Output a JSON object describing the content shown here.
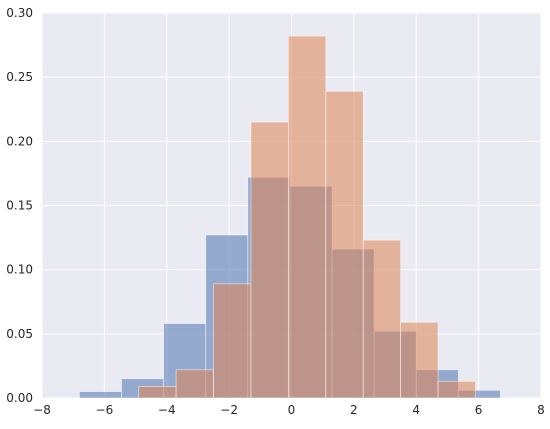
{
  "chart_data": {
    "type": "bar",
    "title": "",
    "xlabel": "",
    "ylabel": "",
    "xlim": [
      -8,
      8
    ],
    "ylim": [
      0,
      0.3
    ],
    "xticks": [
      -8,
      -6,
      -4,
      -2,
      0,
      2,
      4,
      6,
      8
    ],
    "xtick_labels": [
      "−8",
      "−6",
      "−4",
      "−2",
      "0",
      "2",
      "4",
      "6",
      "8"
    ],
    "yticks": [
      0.0,
      0.05,
      0.1,
      0.15,
      0.2,
      0.25,
      0.3
    ],
    "ytick_labels": [
      "0.00",
      "0.05",
      "0.10",
      "0.15",
      "0.20",
      "0.25",
      "0.30"
    ],
    "grid": true,
    "legend": "none",
    "series": [
      {
        "color": "#4c72b0",
        "opacity": 0.55,
        "bins": [
          {
            "x0": -6.8,
            "x1": -5.45,
            "value": 0.005
          },
          {
            "x0": -5.45,
            "x1": -4.1,
            "value": 0.015
          },
          {
            "x0": -4.1,
            "x1": -2.75,
            "value": 0.058
          },
          {
            "x0": -2.75,
            "x1": -1.4,
            "value": 0.127
          },
          {
            "x0": -1.4,
            "x1": -0.05,
            "value": 0.172
          },
          {
            "x0": -0.05,
            "x1": 1.3,
            "value": 0.165
          },
          {
            "x0": 1.3,
            "x1": 2.65,
            "value": 0.116
          },
          {
            "x0": 2.65,
            "x1": 4.0,
            "value": 0.052
          },
          {
            "x0": 4.0,
            "x1": 5.35,
            "value": 0.022
          },
          {
            "x0": 5.35,
            "x1": 6.7,
            "value": 0.006
          }
        ]
      },
      {
        "color": "#dd8452",
        "opacity": 0.55,
        "bins": [
          {
            "x0": -4.9,
            "x1": -3.7,
            "value": 0.009
          },
          {
            "x0": -3.7,
            "x1": -2.5,
            "value": 0.022
          },
          {
            "x0": -2.5,
            "x1": -1.3,
            "value": 0.089
          },
          {
            "x0": -1.3,
            "x1": -0.1,
            "value": 0.215
          },
          {
            "x0": -0.1,
            "x1": 1.1,
            "value": 0.282
          },
          {
            "x0": 1.1,
            "x1": 2.3,
            "value": 0.239
          },
          {
            "x0": 2.3,
            "x1": 3.5,
            "value": 0.123
          },
          {
            "x0": 3.5,
            "x1": 4.7,
            "value": 0.059
          },
          {
            "x0": 4.7,
            "x1": 5.9,
            "value": 0.013
          }
        ]
      }
    ]
  },
  "colors": {
    "plot_background": "#eaeaf2",
    "grid": "#ffffff",
    "tick_text": "#262626"
  }
}
